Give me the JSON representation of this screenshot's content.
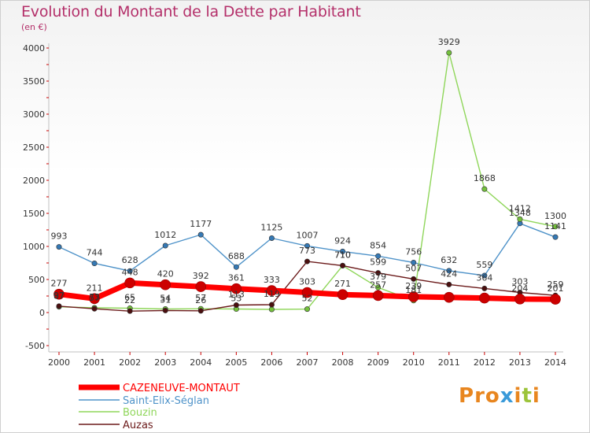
{
  "header": {
    "title": "Evolution du Montant de la Dette par Habitant",
    "subtitle": "(en €)"
  },
  "logo": {
    "text": "Proxiti"
  },
  "colors": {
    "title": "#b4306a",
    "series": [
      "#ff0000",
      "#4f93c9",
      "#8fd65a",
      "#6b1a1a"
    ],
    "markers": [
      "#cc0000",
      "#3579b5",
      "#74c13c",
      "#4a0f0f"
    ]
  },
  "chart_data": {
    "type": "line",
    "x": [
      "2000",
      "2001",
      "2002",
      "2003",
      "2004",
      "2005",
      "2006",
      "2007",
      "2008",
      "2009",
      "2010",
      "2011",
      "2012",
      "2013",
      "2014"
    ],
    "ylim": [
      -500,
      4000
    ],
    "yticks": [
      "-500",
      "0",
      "500",
      "1000",
      "1500",
      "2000",
      "2500",
      "3000",
      "3500",
      "4000"
    ],
    "grid": false,
    "legend": "bottom-left",
    "series": [
      {
        "name": "CAZENEUVE-MONTAUT",
        "values": [
          277,
          211,
          448,
          420,
          392,
          361,
          333,
          303,
          271,
          257,
          239,
          230,
          219,
          204,
          201
        ],
        "labels": [
          "277",
          "211",
          "448",
          "420",
          "392",
          "361",
          "333",
          "303",
          "271",
          "257",
          "239",
          "",
          "",
          "204",
          "201"
        ]
      },
      {
        "name": "Saint-Elix-Séglan",
        "values": [
          993,
          744,
          628,
          1012,
          1177,
          688,
          1125,
          1007,
          924,
          854,
          756,
          632,
          559,
          1348,
          1141
        ],
        "labels": [
          "993",
          "744",
          "628",
          "1012",
          "1177",
          "688",
          "1125",
          "1007",
          "924",
          "854",
          "756",
          "632",
          "559",
          "1348",
          "1141"
        ]
      },
      {
        "name": "Bouzin",
        "values": [
          87,
          73,
          65,
          54,
          57,
          53,
          48,
          52,
          710,
          379,
          181,
          3929,
          1868,
          1412,
          1300
        ],
        "labels": [
          "87",
          "73",
          "65",
          "54",
          "57",
          "53",
          "",
          "52",
          "710",
          "379",
          "181",
          "3929",
          "1868",
          "1412",
          "1300"
        ]
      },
      {
        "name": "Auzas",
        "values": [
          97,
          57,
          22,
          31,
          26,
          113,
          119,
          773,
          710,
          599,
          507,
          424,
          364,
          303,
          259
        ],
        "labels": [
          "97",
          "57",
          "22",
          "31",
          "26",
          "113",
          "119",
          "773",
          "710",
          "599",
          "507",
          "424",
          "364",
          "303",
          "259"
        ]
      }
    ]
  }
}
